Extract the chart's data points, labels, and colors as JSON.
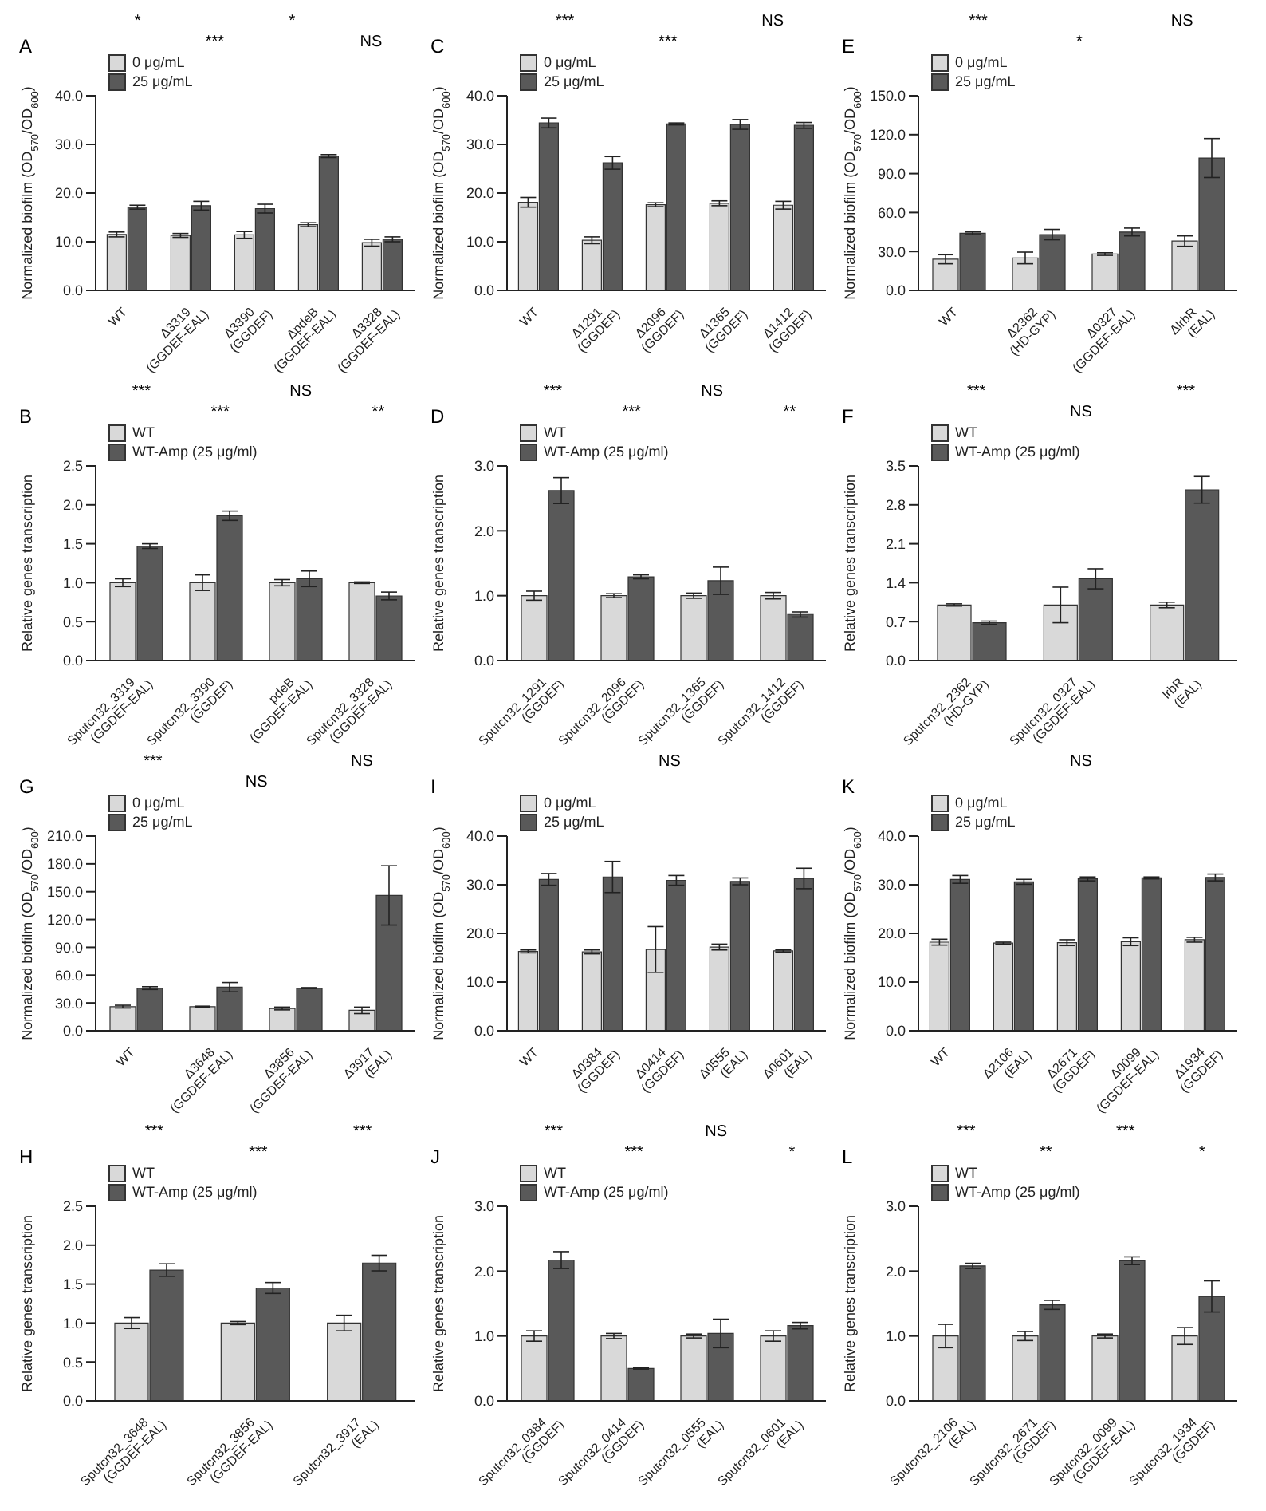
{
  "chart_data": [
    {
      "type": "bar",
      "title": "A",
      "ylabel": "Normalized biofilm (OD$_{570}$/OD$_{600}$)",
      "legend": "top left",
      "categories": [
        "WT",
        "Δ3319 (GGDEF-EAL)",
        "Δ3390 (GGDEF)",
        "ΔpdeB (GGDEF-EAL)",
        "Δ3328 (GGDEF-EAL)"
      ],
      "ylim": [
        0,
        40
      ],
      "yticks": [
        {
          "value": 0,
          "label": "0.0"
        },
        {
          "value": 10,
          "label": "10.0"
        },
        {
          "value": 20,
          "label": "20.0"
        },
        {
          "value": 30,
          "label": "30.0"
        },
        {
          "value": 40,
          "label": "40.0"
        }
      ],
      "series": [
        {
          "name": "0 μg/mL",
          "color": "#d9d9d9",
          "values": [
            11.5,
            11.3,
            11.4,
            13.5,
            9.8
          ],
          "errors": [
            0.5,
            0.4,
            0.7,
            0.4,
            0.7
          ]
        },
        {
          "name": "25 μg/mL",
          "color": "#595959",
          "values": [
            17.1,
            17.4,
            16.8,
            27.6,
            10.5
          ],
          "errors": [
            0.4,
            0.9,
            0.9,
            0.3,
            0.5
          ]
        }
      ],
      "annotations": [
        "*",
        "***",
        "*",
        "NS"
      ]
    },
    {
      "type": "bar",
      "title": "C",
      "ylabel": "Normalized biofilm (OD$_{570}$/OD$_{600}$)",
      "legend": "top left",
      "categories": [
        "WT",
        "Δ1291 (GGDEF)",
        "Δ2096 (GGDEF)",
        "Δ1365 (GGDEF)",
        "Δ1412 (GGDEF)"
      ],
      "ylim": [
        0,
        40
      ],
      "yticks": [
        {
          "value": 0,
          "label": "0.0"
        },
        {
          "value": 10,
          "label": "10.0"
        },
        {
          "value": 20,
          "label": "20.0"
        },
        {
          "value": 30,
          "label": "30.0"
        },
        {
          "value": 40,
          "label": "40.0"
        }
      ],
      "series": [
        {
          "name": "0 μg/mL",
          "color": "#d9d9d9",
          "values": [
            18.1,
            10.3,
            17.6,
            17.9,
            17.5
          ],
          "errors": [
            1.0,
            0.7,
            0.4,
            0.5,
            0.8
          ]
        },
        {
          "name": "25 μg/mL",
          "color": "#595959",
          "values": [
            34.4,
            26.2,
            34.2,
            34.1,
            33.9
          ],
          "errors": [
            1.0,
            1.3,
            0.2,
            1.0,
            0.6
          ]
        }
      ],
      "annotations": [
        "***",
        "***",
        "NS"
      ]
    },
    {
      "type": "bar",
      "title": "E",
      "ylabel": "Normalized biofilm (OD$_{570}$/OD$_{600}$)",
      "legend": "top left",
      "categories": [
        "WT",
        "Δ2362 (HD-GYP)",
        "Δ0327 (GGDEF-EAL)",
        "ΔlrbR (EAL)"
      ],
      "ylim": [
        0,
        150
      ],
      "yticks": [
        {
          "value": 0,
          "label": "0.0"
        },
        {
          "value": 30,
          "label": "30.0"
        },
        {
          "value": 60,
          "label": "60.0"
        },
        {
          "value": 90,
          "label": "90.0"
        },
        {
          "value": 120,
          "label": "120.0"
        },
        {
          "value": 150,
          "label": "150.0"
        }
      ],
      "series": [
        {
          "name": "0 μg/mL",
          "color": "#d9d9d9",
          "values": [
            24,
            25,
            28,
            38
          ],
          "errors": [
            3.5,
            4.5,
            1,
            4
          ]
        },
        {
          "name": "25 μg/mL",
          "color": "#595959",
          "values": [
            44,
            43,
            45,
            102
          ],
          "errors": [
            1,
            4,
            3,
            15
          ]
        }
      ],
      "annotations": [
        "***",
        "*",
        "NS"
      ]
    },
    {
      "type": "bar",
      "title": "B",
      "ylabel": "Relative genes transcription",
      "legend": "top left",
      "categories": [
        "Sputcn32_3319 (GGDEF-EAL)",
        "Sputcn32_3390 (GGDEF)",
        "pdeB (GGDEF-EAL)",
        "Sputcn32_3328 (GGDEF-EAL)"
      ],
      "ylim": [
        0,
        2.5
      ],
      "yticks": [
        {
          "value": 0,
          "label": "0.0"
        },
        {
          "value": 0.5,
          "label": "0.5"
        },
        {
          "value": 1,
          "label": "1.0"
        },
        {
          "value": 1.5,
          "label": "1.5"
        },
        {
          "value": 2,
          "label": "2.0"
        },
        {
          "value": 2.5,
          "label": "2.5"
        }
      ],
      "series": [
        {
          "name": "WT",
          "color": "#d9d9d9",
          "values": [
            1.0,
            1.0,
            1.0,
            1.0
          ],
          "errors": [
            0.05,
            0.1,
            0.04,
            0.01
          ]
        },
        {
          "name": "WT-Amp (25 μg/ml)",
          "color": "#595959",
          "values": [
            1.47,
            1.86,
            1.05,
            0.83
          ],
          "errors": [
            0.03,
            0.06,
            0.1,
            0.05
          ]
        }
      ],
      "annotations": [
        "***",
        "***",
        "NS",
        "**"
      ]
    },
    {
      "type": "bar",
      "title": "D",
      "ylabel": "Relative genes transcription",
      "legend": "top left",
      "categories": [
        "Sputcn32_1291 (GGDEF)",
        "Sputcn32_2096 (GGDEF)",
        "Sputcn32_1365 (GGDEF)",
        "Sputcn32_1412 (GGDEF)"
      ],
      "ylim": [
        0,
        3
      ],
      "yticks": [
        {
          "value": 0,
          "label": "0.0"
        },
        {
          "value": 1,
          "label": "1.0"
        },
        {
          "value": 2,
          "label": "2.0"
        },
        {
          "value": 3,
          "label": "3.0"
        }
      ],
      "series": [
        {
          "name": "WT",
          "color": "#d9d9d9",
          "values": [
            1.0,
            1.0,
            1.0,
            1.0
          ],
          "errors": [
            0.07,
            0.03,
            0.04,
            0.05
          ]
        },
        {
          "name": "WT-Amp (25 μg/ml)",
          "color": "#595959",
          "values": [
            2.62,
            1.29,
            1.23,
            0.71
          ],
          "errors": [
            0.2,
            0.03,
            0.21,
            0.04
          ]
        }
      ],
      "annotations": [
        "***",
        "***",
        "NS",
        "**"
      ]
    },
    {
      "type": "bar",
      "title": "F",
      "ylabel": "Relative genes transcription",
      "legend": "top left",
      "categories": [
        "Sputcn32_2362 (HD-GYP)",
        "Sputcn32_0327 (GGDEF-EAL)",
        "lrbR (EAL)"
      ],
      "ylim": [
        0,
        3.5
      ],
      "yticks": [
        {
          "value": 0,
          "label": "0.0"
        },
        {
          "value": 0.7,
          "label": "0.7"
        },
        {
          "value": 1.4,
          "label": "1.4"
        },
        {
          "value": 2.1,
          "label": "2.1"
        },
        {
          "value": 2.8,
          "label": "2.8"
        },
        {
          "value": 3.5,
          "label": "3.5"
        }
      ],
      "series": [
        {
          "name": "WT",
          "color": "#d9d9d9",
          "values": [
            1.0,
            1.0,
            1.0
          ],
          "errors": [
            0.02,
            0.32,
            0.05
          ]
        },
        {
          "name": "WT-Amp (25 μg/ml)",
          "color": "#595959",
          "values": [
            0.68,
            1.47,
            3.07
          ],
          "errors": [
            0.03,
            0.18,
            0.24
          ]
        }
      ],
      "annotations": [
        "***",
        "NS",
        "***"
      ]
    },
    {
      "type": "bar",
      "title": "G",
      "ylabel": "Normalized biofilm (OD$_{570}$/OD$_{600}$)",
      "legend": "top left",
      "categories": [
        "WT",
        "Δ3648 (GGDEF-EAL)",
        "Δ3856 (GGDEF-EAL)",
        "Δ3917 (EAL)"
      ],
      "ylim": [
        0,
        210
      ],
      "yticks": [
        {
          "value": 0,
          "label": "0.0"
        },
        {
          "value": 30,
          "label": "30.0"
        },
        {
          "value": 60,
          "label": "60.0"
        },
        {
          "value": 90,
          "label": "90.0"
        },
        {
          "value": 120,
          "label": "120.0"
        },
        {
          "value": 150,
          "label": "150.0"
        },
        {
          "value": 180,
          "label": "180.0"
        },
        {
          "value": 210,
          "label": "210.0"
        }
      ],
      "series": [
        {
          "name": "0 μg/mL",
          "color": "#d9d9d9",
          "values": [
            26,
            26,
            24,
            22
          ],
          "errors": [
            1.5,
            0.5,
            1.5,
            3.5
          ]
        },
        {
          "name": "25 μg/mL",
          "color": "#595959",
          "values": [
            46,
            47,
            46,
            146
          ],
          "errors": [
            1.5,
            5,
            0.5,
            32
          ]
        }
      ],
      "annotations": [
        "***",
        "NS",
        "NS"
      ]
    },
    {
      "type": "bar",
      "title": "I",
      "ylabel": "Normalized biofilm (OD$_{570}$/OD$_{600}$)",
      "legend": "top left",
      "categories": [
        "WT",
        "Δ0384 (GGDEF)",
        "Δ0414 (GGDEF)",
        "Δ0555 (EAL)",
        "Δ0601 (EAL)"
      ],
      "ylim": [
        0,
        40
      ],
      "yticks": [
        {
          "value": 0,
          "label": "0.0"
        },
        {
          "value": 10,
          "label": "10.0"
        },
        {
          "value": 20,
          "label": "20.0"
        },
        {
          "value": 30,
          "label": "30.0"
        },
        {
          "value": 40,
          "label": "40.0"
        }
      ],
      "series": [
        {
          "name": "0 μg/mL",
          "color": "#d9d9d9",
          "values": [
            16.3,
            16.2,
            16.7,
            17.2,
            16.4
          ],
          "errors": [
            0.3,
            0.4,
            4.7,
            0.6,
            0.2
          ]
        },
        {
          "name": "25 μg/mL",
          "color": "#595959",
          "values": [
            31.1,
            31.6,
            30.9,
            30.7,
            31.3
          ],
          "errors": [
            1.2,
            3.2,
            1.0,
            0.7,
            2.1
          ]
        }
      ],
      "annotations": [
        "NS"
      ]
    },
    {
      "type": "bar",
      "title": "K",
      "ylabel": "Normalized biofilm (OD$_{570}$/OD$_{600}$)",
      "legend": "top left",
      "categories": [
        "WT",
        "Δ2106 (EAL)",
        "Δ2671 (GGDEF)",
        "Δ0099 (GGDEF-EAL)",
        "Δ1934 (GGDEF)"
      ],
      "ylim": [
        0,
        40
      ],
      "yticks": [
        {
          "value": 0,
          "label": "0.0"
        },
        {
          "value": 10,
          "label": "10.0"
        },
        {
          "value": 20,
          "label": "20.0"
        },
        {
          "value": 30,
          "label": "30.0"
        },
        {
          "value": 40,
          "label": "40.0"
        }
      ],
      "series": [
        {
          "name": "0 μg/mL",
          "color": "#d9d9d9",
          "values": [
            18.2,
            18.0,
            18.1,
            18.3,
            18.7
          ],
          "errors": [
            0.6,
            0.2,
            0.6,
            0.8,
            0.5
          ]
        },
        {
          "name": "25 μg/mL",
          "color": "#595959",
          "values": [
            31.1,
            30.6,
            31.2,
            31.4,
            31.5
          ],
          "errors": [
            0.8,
            0.5,
            0.4,
            0.2,
            0.7
          ]
        }
      ],
      "annotations": [
        "NS"
      ]
    },
    {
      "type": "bar",
      "title": "H",
      "ylabel": "Relative genes transcription",
      "legend": "top left",
      "categories": [
        "Sputcn32_3648 (GGDEF-EAL)",
        "Sputcn32_3856 (GGDEF-EAL)",
        "Sputcn32_3917 (EAL)"
      ],
      "ylim": [
        0,
        2.5
      ],
      "yticks": [
        {
          "value": 0,
          "label": "0.0"
        },
        {
          "value": 0.5,
          "label": "0.5"
        },
        {
          "value": 1,
          "label": "1.0"
        },
        {
          "value": 1.5,
          "label": "1.5"
        },
        {
          "value": 2,
          "label": "2.0"
        },
        {
          "value": 2.5,
          "label": "2.5"
        }
      ],
      "series": [
        {
          "name": "WT",
          "color": "#d9d9d9",
          "values": [
            1.0,
            1.0,
            1.0
          ],
          "errors": [
            0.07,
            0.02,
            0.1
          ]
        },
        {
          "name": "WT-Amp (25 μg/ml)",
          "color": "#595959",
          "values": [
            1.68,
            1.45,
            1.77
          ],
          "errors": [
            0.08,
            0.07,
            0.1
          ]
        }
      ],
      "annotations": [
        "***",
        "***",
        "***"
      ]
    },
    {
      "type": "bar",
      "title": "J",
      "ylabel": "Relative genes transcription",
      "legend": "top left",
      "categories": [
        "Sputcn32_0384 (GGDEF)",
        "Sputcn32_0414 (GGDEF)",
        "Sputcn32_0555 (EAL)",
        "Sputcn32_0601 (EAL)"
      ],
      "ylim": [
        0,
        3
      ],
      "yticks": [
        {
          "value": 0,
          "label": "0.0"
        },
        {
          "value": 1,
          "label": "1.0"
        },
        {
          "value": 2,
          "label": "2.0"
        },
        {
          "value": 3,
          "label": "3.0"
        }
      ],
      "series": [
        {
          "name": "WT",
          "color": "#d9d9d9",
          "values": [
            1.0,
            1.0,
            1.0,
            1.0
          ],
          "errors": [
            0.08,
            0.04,
            0.03,
            0.08
          ]
        },
        {
          "name": "WT-Amp (25 μg/ml)",
          "color": "#595959",
          "values": [
            2.17,
            0.5,
            1.04,
            1.16
          ],
          "errors": [
            0.13,
            0.01,
            0.22,
            0.05
          ]
        }
      ],
      "annotations": [
        "***",
        "***",
        "NS",
        "*"
      ]
    },
    {
      "type": "bar",
      "title": "L",
      "ylabel": "Relative genes transcription",
      "legend": "top left",
      "categories": [
        "Sputcn32_2106 (EAL)",
        "Sputcn32_2671 (GGDEF)",
        "Sputcn32_0099 (GGDEF-EAL)",
        "Sputcn32_1934 (GGDEF)"
      ],
      "ylim": [
        0,
        3
      ],
      "yticks": [
        {
          "value": 0,
          "label": "0.0"
        },
        {
          "value": 1,
          "label": "1.0"
        },
        {
          "value": 2,
          "label": "2.0"
        },
        {
          "value": 3,
          "label": "3.0"
        }
      ],
      "series": [
        {
          "name": "WT",
          "color": "#d9d9d9",
          "values": [
            1.0,
            1.0,
            1.0,
            1.0
          ],
          "errors": [
            0.18,
            0.07,
            0.03,
            0.13
          ]
        },
        {
          "name": "WT-Amp (25 μg/ml)",
          "color": "#595959",
          "values": [
            2.08,
            1.48,
            2.16,
            1.61
          ],
          "errors": [
            0.04,
            0.07,
            0.06,
            0.24
          ]
        }
      ],
      "annotations": [
        "***",
        "**",
        "***",
        "*"
      ]
    }
  ]
}
